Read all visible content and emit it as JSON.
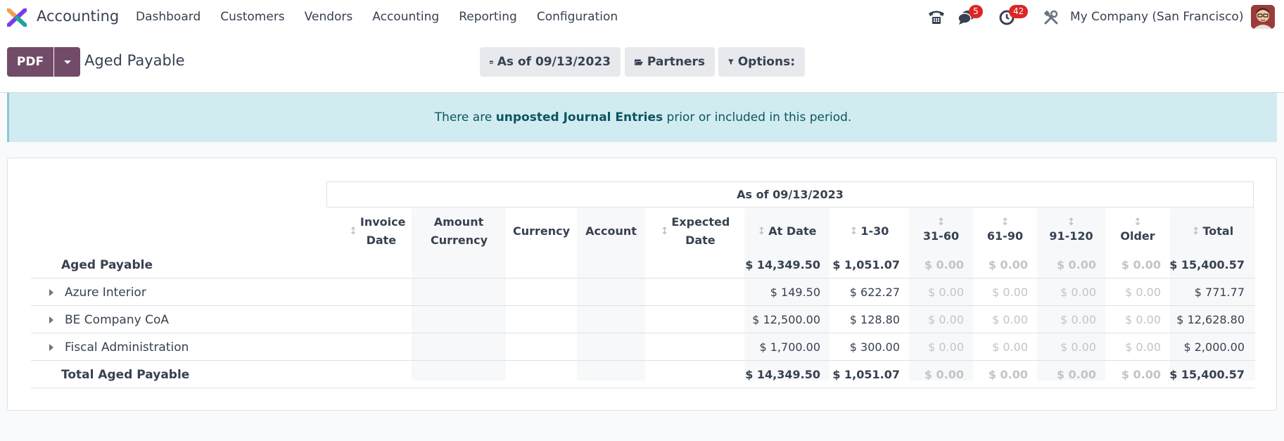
{
  "app": {
    "name": "Accounting",
    "menu": [
      "Dashboard",
      "Customers",
      "Vendors",
      "Accounting",
      "Reporting",
      "Configuration"
    ],
    "messages_badge": "5",
    "activities_badge": "42",
    "company": "My Company (San Francisco)"
  },
  "control": {
    "pdf_label": "PDF",
    "title": "Aged Payable",
    "date_filter": "As of 09/13/2023",
    "partners_filter": "Partners",
    "options_filter": "Options:"
  },
  "alert": {
    "prefix": "There are ",
    "link": "unposted Journal Entries",
    "suffix": " prior or included in this period."
  },
  "report": {
    "period_header": "As of 09/13/2023",
    "columns": {
      "invoice_date": "Invoice Date",
      "amount_currency": "Amount Currency",
      "currency": "Currency",
      "account": "Account",
      "expected_date": "Expected Date",
      "at_date": "At Date",
      "d1_30": "1-30",
      "d31_60": "31-60",
      "d61_90": "61-90",
      "d91_120": "91-120",
      "older": "Older",
      "total": "Total"
    },
    "rows": [
      {
        "name": "Aged Payable",
        "at_date": "$ 14,349.50",
        "d1_30": "$ 1,051.07",
        "d31_60": "$ 0.00",
        "d61_90": "$ 0.00",
        "d91_120": "$ 0.00",
        "older": "$ 0.00",
        "total": "$ 15,400.57"
      },
      {
        "name": "Azure Interior",
        "at_date": "$ 149.50",
        "d1_30": "$ 622.27",
        "d31_60": "$ 0.00",
        "d61_90": "$ 0.00",
        "d91_120": "$ 0.00",
        "older": "$ 0.00",
        "total": "$ 771.77"
      },
      {
        "name": "BE Company CoA",
        "at_date": "$ 12,500.00",
        "d1_30": "$ 128.80",
        "d31_60": "$ 0.00",
        "d61_90": "$ 0.00",
        "d91_120": "$ 0.00",
        "older": "$ 0.00",
        "total": "$ 12,628.80"
      },
      {
        "name": "Fiscal Administration",
        "at_date": "$ 1,700.00",
        "d1_30": "$ 300.00",
        "d31_60": "$ 0.00",
        "d61_90": "$ 0.00",
        "d91_120": "$ 0.00",
        "older": "$ 0.00",
        "total": "$ 2,000.00"
      },
      {
        "name": "Total Aged Payable",
        "at_date": "$ 14,349.50",
        "d1_30": "$ 1,051.07",
        "d31_60": "$ 0.00",
        "d61_90": "$ 0.00",
        "d91_120": "$ 0.00",
        "older": "$ 0.00",
        "total": "$ 15,400.57"
      }
    ]
  },
  "colors": {
    "brand": "#714b67",
    "alert_bg": "#d1ecf1",
    "alert_text": "#0c5460",
    "badge": "#dc2626"
  }
}
